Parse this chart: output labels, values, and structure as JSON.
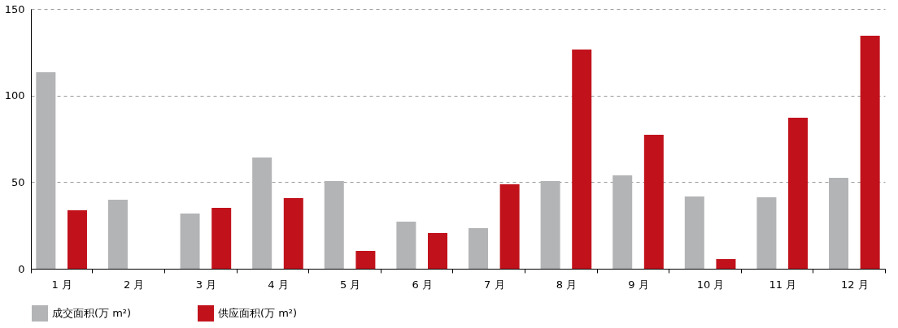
{
  "chart_data": {
    "type": "bar",
    "categories": [
      "1 月",
      "2 月",
      "3 月",
      "4 月",
      "5 月",
      "6 月",
      "7 月",
      "8 月",
      "9 月",
      "10 月",
      "11 月",
      "12 月"
    ],
    "series": [
      {
        "name": "成交面积(万 m²)",
        "color": "#b3b4b6",
        "values": [
          113.4,
          39.8,
          31.9,
          64.2,
          50.6,
          27.2,
          23.4,
          50.6,
          53.9,
          41.7,
          41.3,
          52.5
        ]
      },
      {
        "name": "供应面积(万 m²)",
        "color": "#c1121c",
        "values": [
          33.8,
          null,
          35.2,
          40.8,
          10.3,
          20.6,
          48.8,
          126.6,
          77.4,
          5.6,
          87.2,
          134.5
        ]
      }
    ],
    "ylim": [
      0,
      150
    ],
    "yticks": [
      0,
      50,
      100,
      150
    ],
    "grid": "y",
    "legend": "bottom"
  }
}
